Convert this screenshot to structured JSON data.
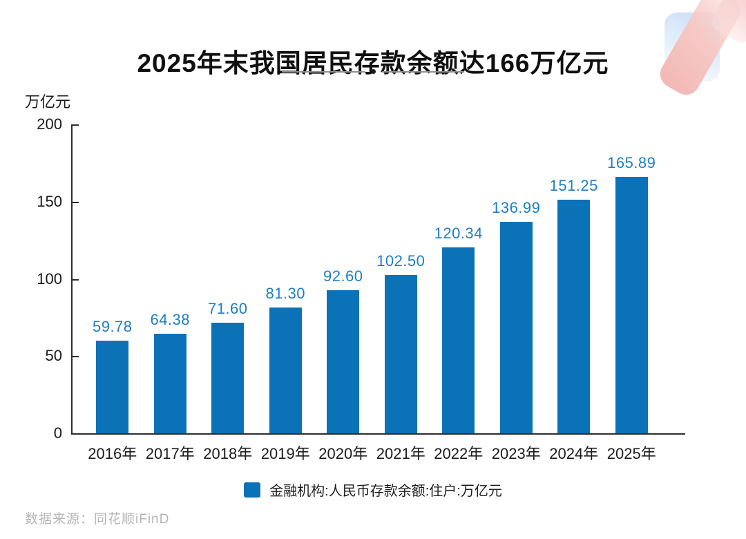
{
  "title": "2025年末我国居民存款余额达166万亿元",
  "unit_label": "万亿元",
  "source": "数据来源：同花顺iFinD",
  "legend": {
    "label": "金融机构:人民币存款余额:住户:万亿元"
  },
  "colors": {
    "bar": "#0b72b8",
    "value_label": "#1d7ec4",
    "axis": "#2d2d2d",
    "text": "#1c1c1c",
    "source_text": "#b5b5b5"
  },
  "chart_data": {
    "type": "bar",
    "categories": [
      "2016年",
      "2017年",
      "2018年",
      "2019年",
      "2020年",
      "2021年",
      "2022年",
      "2023年",
      "2024年",
      "2025年"
    ],
    "values": [
      59.78,
      64.38,
      71.6,
      81.3,
      92.6,
      102.5,
      120.34,
      136.99,
      151.25,
      165.89
    ],
    "value_labels": [
      "59.78",
      "64.38",
      "71.60",
      "81.30",
      "92.60",
      "102.50",
      "120.34",
      "136.99",
      "151.25",
      "165.89"
    ],
    "title": "2025年末我国居民存款余额达166万亿元",
    "xlabel": "",
    "ylabel": "万亿元",
    "ylim": [
      0,
      200
    ],
    "yticks": [
      0,
      50,
      100,
      150,
      200
    ],
    "legend": [
      "金融机构:人民币存款余额:住户:万亿元"
    ],
    "legend_position": "bottom",
    "grid": false,
    "bar_color": "#0b72b8"
  }
}
